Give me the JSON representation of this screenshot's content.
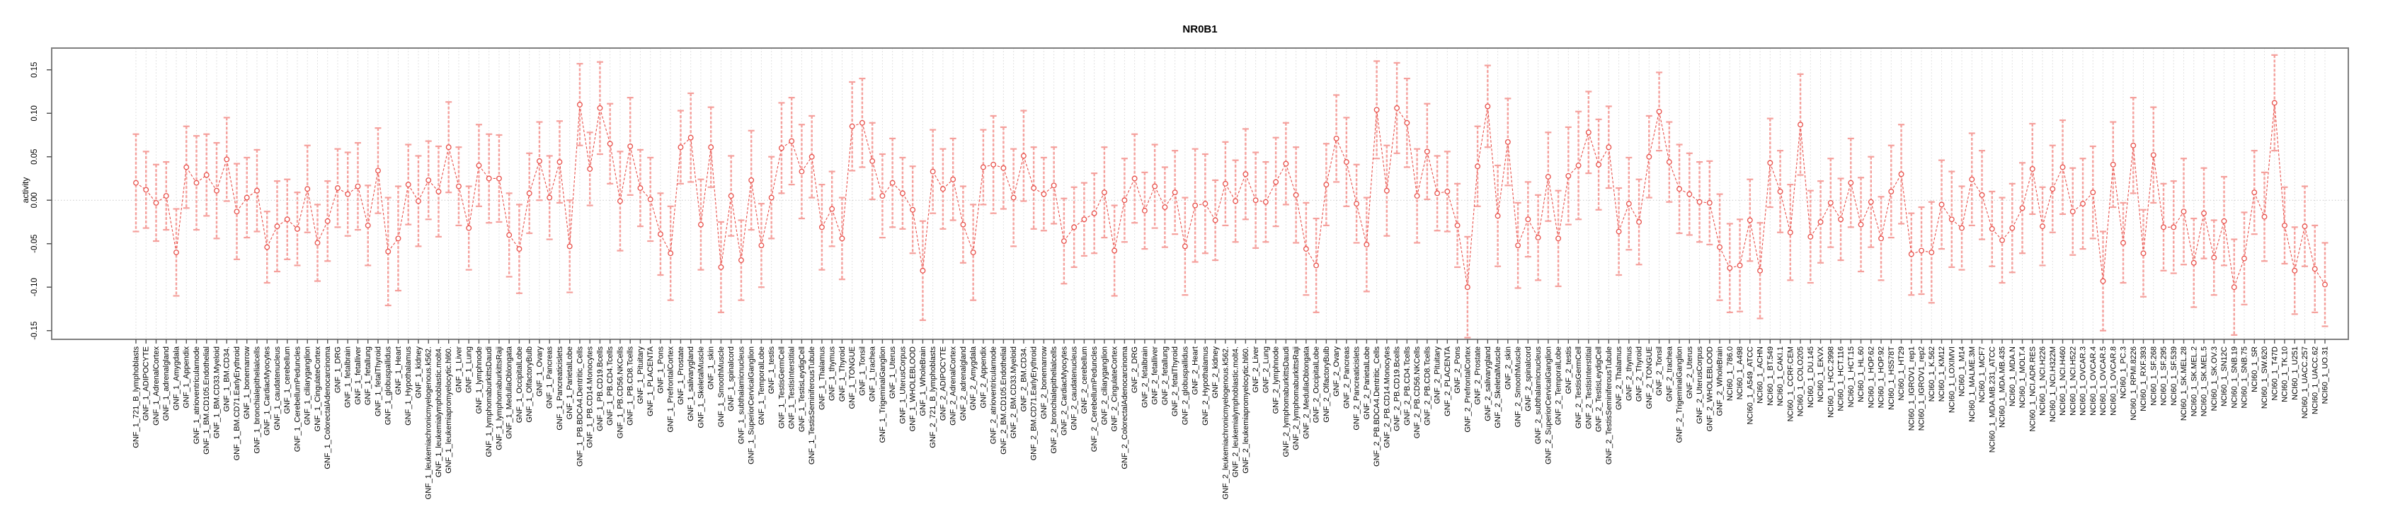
{
  "title": "NR0B1",
  "ylabel": "activity",
  "xlabel": "",
  "colors": {
    "point": "#e8504a",
    "segment": "#e8504a",
    "error_bar": "#f5a09c",
    "grid": "#d8d8d8",
    "zero_line": "#c8c8c8",
    "box": "#7f7f7f",
    "tick": "#555555",
    "text": "#000000",
    "background": "#ffffff"
  },
  "chart_data": {
    "type": "scatter",
    "connected": true,
    "line_style": "dashed",
    "error_bars": true,
    "legend": "none",
    "grid": "vertical dotted line at every category; horizontal dotted line at y=0",
    "title": "NR0B1",
    "xlabel": "",
    "ylabel": "activity",
    "ylim": [
      -0.16,
      0.175
    ],
    "yticks": [
      -0.15,
      -0.1,
      -0.05,
      0.0,
      0.05,
      0.1,
      0.15
    ],
    "ytick_labels": [
      "-0.15",
      "-0.10",
      "-0.05",
      "0.00",
      "0.05",
      "0.10",
      "0.15"
    ],
    "categories": [
      "GNF_1_721_B_lymphoblasts",
      "GNF_1_ADIPOCYTE",
      "GNF_1_AdrenalCortex",
      "GNF_1_adrenalgland",
      "GNF_1_Amygdala",
      "GNF_1_Appendix",
      "GNF_1_atrioventricularnode",
      "GNF_1_BM.CD105.Endothelial",
      "GNF_1_BM.CD33.Myeloid",
      "GNF_1_BM.CD34.",
      "GNF_1_BM.CD71.EarlyErythroid",
      "GNF_1_bonemarrow",
      "GNF_1_bronchialepithelialcells",
      "GNF_1_CardiacMyocytes",
      "GNF_1_caudatenucleus",
      "GNF_1_cerebellum",
      "GNF_1_CerebellumPeduncles",
      "GNF_1_ciliaryganglion",
      "GNF_1_CingulateCortex",
      "GNF_1_ColorectalAdenocarcinoma",
      "GNF_1_DRG",
      "GNF_1_fetalbrain",
      "GNF_1_fetalliver",
      "GNF_1_fetallung",
      "GNF_1_fetalThyroid",
      "GNF_1_globuspallidus",
      "GNF_1_Heart",
      "GNF_1_Hypothalamus",
      "GNF_1_kidney",
      "GNF_1_leukemiachronicmyelogenous.k562.",
      "GNF_1_leukemialymphoblastic.molt4.",
      "GNF_1_leukemiapromyelocytic.hl60.",
      "GNF_1_Liver",
      "GNF_1_Lung",
      "GNF_1_lymphnode",
      "GNF_1_lymphomaburkittsDaudi",
      "GNF_1_lymphomaburkittsRaji",
      "GNF_1_MedullaOblongata",
      "GNF_1_OccipitalLobe",
      "GNF_1_OlfactoryBulb",
      "GNF_1_Ovary",
      "GNF_1_Pancreas",
      "GNF_1_Pancreaticislets",
      "GNF_1_ParietalLobe",
      "GNF_1_PB.BDCA4.Dentritic_Cells",
      "GNF_1_PB.CD14.Monocytes",
      "GNF_1_PB.CD19.Bcells",
      "GNF_1_PB.CD4.Tcells",
      "GNF_1_PB.CD56.NKCells",
      "GNF_1_PB.CD8.Tcells",
      "GNF_1_Pituitary",
      "GNF_1_PLACENTA",
      "GNF_1_Pons",
      "GNF_1_PrefrontalCortex",
      "GNF_1_Prostate",
      "GNF_1_salivarygland",
      "GNF_1_SkeletalMuscle",
      "GNF_1_skin",
      "GNF_1_SmoothMuscle",
      "GNF_1_spinalcord",
      "GNF_1_subthalamicnucleus",
      "GNF_1_SuperiorCervicalGanglion",
      "GNF_1_TemporalLobe",
      "GNF_1_testis",
      "GNF_1_TestisGermCell",
      "GNF_1_TestisInterstitial",
      "GNF_1_TestisLeydigCell",
      "GNF_1_TestisSeminiferousTubule",
      "GNF_1_Thalamus",
      "GNF_1_thymus",
      "GNF_1_Thyroid",
      "GNF_1_TONGUE",
      "GNF_1_Tonsil",
      "GNF_1_trachea",
      "GNF_1_TrigeminalGanglion",
      "GNF_1_Uterus",
      "GNF_1_UterusCorpus",
      "GNF_1_WHOLEBLOOD",
      "GNF_1_WholeBrain",
      "GNF_2_721_B_lymphoblasts",
      "GNF_2_ADIPOCYTE",
      "GNF_2_AdrenalCortex",
      "GNF_2_adrenalgland",
      "GNF_2_Amygdala",
      "GNF_2_Appendix",
      "GNF_2_atrioventricularnode",
      "GNF_2_BM.CD105.Endothelial",
      "GNF_2_BM.CD33.Myeloid",
      "GNF_2_BM.CD34.",
      "GNF_2_BM.CD71.EarlyErythroid",
      "GNF_2_bonemarrow",
      "GNF_2_bronchialepithelialcells",
      "GNF_2_CardiacMyocytes",
      "GNF_2_caudatenucleus",
      "GNF_2_cerebellum",
      "GNF_2_CerebellumPeduncles",
      "GNF_2_ciliaryganglion",
      "GNF_2_CingulateCortex",
      "GNF_2_ColorectalAdenocarcinoma",
      "GNF_2_DRG",
      "GNF_2_fetalbrain",
      "GNF_2_fetalliver",
      "GNF_2_fetallung",
      "GNF_2_fetalThyroid",
      "GNF_2_globuspallidus",
      "GNF_2_Heart",
      "GNF_2_Hypothalamus",
      "GNF_2_kidney",
      "GNF_2_leukemiachronicmyelogenous.k562.",
      "GNF_2_leukemialymphoblastic.molt4.",
      "GNF_2_leukemiapromyelocytic.hl60.",
      "GNF_2_Liver",
      "GNF_2_Lung",
      "GNF_2_lymphnode",
      "GNF_2_lymphomaburkittsDaudi",
      "GNF_2_lymphomaburkittsRaji",
      "GNF_2_MedullaOblongata",
      "GNF_2_OccipitalLobe",
      "GNF_2_OlfactoryBulb",
      "GNF_2_Ovary",
      "GNF_2_Pancreas",
      "GNF_2_Pancreaticislets",
      "GNF_2_ParietalLobe",
      "GNF_2_PB.BDCA4.Dentritic_Cells",
      "GNF_2_PB.CD14.Monocytes",
      "GNF_2_PB.CD19.Bcells",
      "GNF_2_PB.CD4.Tcells",
      "GNF_2_PB.CD56.NKCells",
      "GNF_2_PB.CD8.Tcells",
      "GNF_2_Pituitary",
      "GNF_2_PLACENTA",
      "GNF_2_Pons",
      "GNF_2_PrefrontalCortex",
      "GNF_2_Prostate",
      "GNF_2_salivarygland",
      "GNF_2_SkeletalMuscle",
      "GNF_2_skin",
      "GNF_2_SmoothMuscle",
      "GNF_2_spinalcord",
      "GNF_2_subthalamicnucleus",
      "GNF_2_SuperiorCervicalGanglion",
      "GNF_2_TemporalLobe",
      "GNF_2_testis",
      "GNF_2_TestisGermCell",
      "GNF_2_TestisInterstitial",
      "GNF_2_TestisLeydigCell",
      "GNF_2_TestisSeminiferousTubule",
      "GNF_2_Thalamus",
      "GNF_2_thymus",
      "GNF_2_Thyroid",
      "GNF_2_TONGUE",
      "GNF_2_Tonsil",
      "GNF_2_trachea",
      "GNF_2_TrigeminalGanglion",
      "GNF_2_Uterus",
      "GNF_2_UterusCorpus",
      "GNF_2_WHOLEBLOOD",
      "GNF_2_WholeBrain",
      "NCI60_1_786.0",
      "NCI60_1_A498",
      "NCI60_1_A549_ATCC",
      "NCI60_1_ACHN",
      "NCI60_1_BT.549",
      "NCI60_1_CAKI.1",
      "NCI60_1_CCRF.CEM",
      "NCI60_1_COLO205",
      "NCI60_1_DU.145",
      "NCI60_1_EKVX",
      "NCI60_1_HCC.2998",
      "NCI60_1_HCT.116",
      "NCI60_1_HCT.15",
      "NCI60_1_HL.60",
      "NCI60_1_HOP.62",
      "NCI60_1_HOP.92",
      "NCI60_1_HS578T",
      "NCI60_1_HT29",
      "NCI60_1_IGROV1_rep1",
      "NCI60_1_IGROV1_rep2",
      "NCI60_1_K.562",
      "NCI60_1_KM12",
      "NCI60_1_LOXIMVI",
      "NCI60_1_M14",
      "NCI60_1_MALME.3M",
      "NCI60_1_MCF7",
      "NCI60_1_MDA.MB.231_ATCC",
      "NCI60_1_MDA.MB.435",
      "NCI60_1_MDA.N",
      "NCI60_1_MOLT.4",
      "NCI60_1_NCI.ADR.RES",
      "NCI60_1_NCI.H226",
      "NCI60_1_NCI.H322M",
      "NCI60_1_NCI.H460",
      "NCI60_1_NCI.H522",
      "NCI60_1_OVCAR.3",
      "NCI60_1_OVCAR.4",
      "NCI60_1_OVCAR.5",
      "NCI60_1_OVCAR.8",
      "NCI60_1_PC.3",
      "NCI60_1_RPMI.8226",
      "NCI60_1_RXF.393",
      "NCI60_1_SF.268",
      "NCI60_1_SF.295",
      "NCI60_1_SF.539",
      "NCI60_1_SK.MEL.28",
      "NCI60_1_SK.MEL.2",
      "NCI60_1_SK.MEL.5",
      "NCI60_1_SK.OV.3",
      "NCI60_1_SN12C",
      "NCI60_1_SNB.19",
      "NCI60_1_SNB.75",
      "NCI60_1_SR",
      "NCI60_1_SW.620",
      "NCI60_1_T47D",
      "NCI60_1_TK.10",
      "NCI60_1_U251",
      "NCI60_1_UACC.257",
      "NCI60_1_UACC.62",
      "NCI60_1_UO.31"
    ],
    "values": [
      0.02,
      0.012,
      -0.003,
      0.005,
      -0.06,
      0.038,
      0.02,
      0.029,
      0.011,
      0.047,
      -0.013,
      0.003,
      0.011,
      -0.054,
      -0.03,
      -0.022,
      -0.033,
      0.013,
      -0.049,
      -0.024,
      0.014,
      0.007,
      0.016,
      -0.029,
      0.034,
      -0.059,
      -0.044,
      0.018,
      -0.001,
      0.023,
      0.01,
      0.061,
      0.016,
      -0.032,
      0.04,
      0.025,
      0.025,
      -0.04,
      -0.056,
      0.008,
      0.045,
      0.003,
      0.044,
      -0.053,
      0.11,
      0.036,
      0.106,
      0.065,
      -0.001,
      0.062,
      0.014,
      0.001,
      -0.039,
      -0.061,
      0.061,
      0.072,
      -0.028,
      0.061,
      -0.077,
      0.005,
      -0.069,
      0.023,
      -0.052,
      0.003,
      0.06,
      0.068,
      0.033,
      0.05,
      -0.031,
      -0.01,
      -0.044,
      0.085,
      0.089,
      0.045,
      0.005,
      0.02,
      0.008,
      -0.011,
      -0.081,
      0.033,
      0.013,
      0.024,
      -0.028,
      -0.06,
      0.038,
      0.041,
      0.037,
      0.003,
      0.051,
      0.014,
      0.007,
      0.017,
      -0.047,
      -0.031,
      -0.022,
      -0.015,
      0.009,
      -0.058,
      0.0,
      0.025,
      -0.012,
      0.016,
      -0.008,
      0.009,
      -0.053,
      -0.006,
      -0.004,
      -0.023,
      0.019,
      -0.001,
      0.03,
      0.0,
      -0.002,
      0.021,
      0.042,
      0.006,
      -0.056,
      -0.075,
      0.018,
      0.071,
      0.044,
      -0.004,
      -0.051,
      0.104,
      0.011,
      0.106,
      0.089,
      0.005,
      0.056,
      0.008,
      0.01,
      -0.029,
      -0.1,
      0.039,
      0.108,
      -0.018,
      0.067,
      -0.052,
      -0.022,
      -0.043,
      0.027,
      -0.044,
      0.028,
      0.04,
      0.078,
      0.041,
      0.061,
      -0.036,
      -0.004,
      -0.025,
      0.05,
      0.102,
      0.044,
      0.013,
      0.007,
      -0.002,
      -0.003,
      -0.054,
      -0.078,
      -0.075,
      -0.023,
      -0.081,
      0.043,
      0.01,
      -0.037,
      0.087,
      -0.042,
      -0.025,
      -0.003,
      -0.022,
      0.02,
      -0.028,
      -0.002,
      -0.044,
      0.01,
      0.03,
      -0.062,
      -0.058,
      -0.06,
      -0.005,
      -0.022,
      -0.032,
      0.024,
      0.006,
      -0.033,
      -0.046,
      -0.032,
      -0.009,
      0.036,
      -0.03,
      0.013,
      0.038,
      -0.013,
      -0.004,
      0.009,
      -0.093,
      0.041,
      -0.049,
      0.063,
      -0.061,
      0.052,
      -0.031,
      -0.031,
      -0.013,
      -0.072,
      -0.015,
      -0.066,
      -0.024,
      -0.1,
      -0.067,
      0.009,
      -0.019,
      0.112,
      -0.029,
      -0.081,
      -0.03,
      -0.079,
      -0.097
    ],
    "errors": [
      0.056,
      0.044,
      0.044,
      0.039,
      0.05,
      0.047,
      0.054,
      0.047,
      0.055,
      0.048,
      0.055,
      0.046,
      0.047,
      0.041,
      0.052,
      0.046,
      0.042,
      0.05,
      0.044,
      0.046,
      0.045,
      0.048,
      0.05,
      0.046,
      0.049,
      0.062,
      0.06,
      0.046,
      0.052,
      0.045,
      0.052,
      0.052,
      0.045,
      0.048,
      0.047,
      0.051,
      0.05,
      0.048,
      0.051,
      0.046,
      0.045,
      0.048,
      0.047,
      0.053,
      0.047,
      0.042,
      0.053,
      0.046,
      0.057,
      0.056,
      0.044,
      0.048,
      0.047,
      0.054,
      0.042,
      0.051,
      0.052,
      0.046,
      0.052,
      0.046,
      0.046,
      0.057,
      0.048,
      0.047,
      0.052,
      0.05,
      0.054,
      0.047,
      0.049,
      0.043,
      0.047,
      0.051,
      0.051,
      0.044,
      0.048,
      0.051,
      0.041,
      0.05,
      0.057,
      0.048,
      0.046,
      0.047,
      0.044,
      0.055,
      0.043,
      0.056,
      0.047,
      0.056,
      0.052,
      0.047,
      0.042,
      0.044,
      0.049,
      0.046,
      0.042,
      0.046,
      0.052,
      0.052,
      0.048,
      0.051,
      0.044,
      0.048,
      0.046,
      0.048,
      0.056,
      0.065,
      0.057,
      0.046,
      0.048,
      0.047,
      0.052,
      0.055,
      0.046,
      0.051,
      0.047,
      0.055,
      0.053,
      0.054,
      0.047,
      0.05,
      0.051,
      0.045,
      0.054,
      0.056,
      0.052,
      0.052,
      0.051,
      0.054,
      0.055,
      0.043,
      0.046,
      0.048,
      0.058,
      0.046,
      0.047,
      0.058,
      0.05,
      0.049,
      0.043,
      0.049,
      0.051,
      0.055,
      0.056,
      0.062,
      0.047,
      0.052,
      0.047,
      0.05,
      0.053,
      0.049,
      0.047,
      0.045,
      0.046,
      0.051,
      0.047,
      0.046,
      0.048,
      0.061,
      0.051,
      0.053,
      0.047,
      0.055,
      0.051,
      0.047,
      0.055,
      0.058,
      0.053,
      0.047,
      0.051,
      0.047,
      0.051,
      0.054,
      0.052,
      0.048,
      0.053,
      0.057,
      0.047,
      0.05,
      0.058,
      0.051,
      0.055,
      0.048,
      0.053,
      0.051,
      0.043,
      0.049,
      0.051,
      0.052,
      0.052,
      0.045,
      0.05,
      0.054,
      0.05,
      0.052,
      0.053,
      0.057,
      0.049,
      0.046,
      0.055,
      0.05,
      0.055,
      0.05,
      0.053,
      0.061,
      0.051,
      0.052,
      0.043,
      0.051,
      0.055,
      0.053,
      0.048,
      0.051,
      0.055,
      0.044,
      0.05,
      0.046,
      0.05,
      0.048
    ]
  }
}
